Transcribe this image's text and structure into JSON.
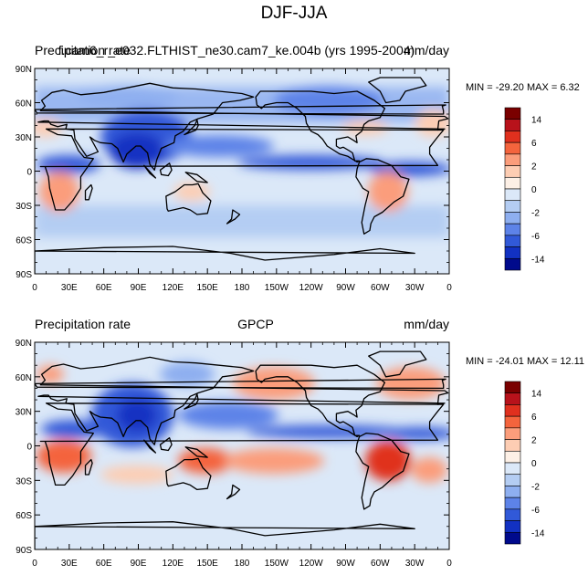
{
  "title": "DJF-JJA",
  "colorbar_levels": [
    "14",
    "6",
    "2",
    "0",
    "-2",
    "-6",
    "-14"
  ],
  "colorbar_colors": [
    "#7a0000",
    "#b8121b",
    "#e0301e",
    "#f4643d",
    "#fb9d7b",
    "#fdcdb3",
    "#fdf0e6",
    "#dbe8f8",
    "#b4cdf3",
    "#8eaff0",
    "#5d83e8",
    "#3159d8",
    "#1231c2",
    "#000a8c"
  ],
  "x_ticks": [
    "0",
    "30E",
    "60E",
    "90E",
    "120E",
    "150E",
    "180",
    "150W",
    "120W",
    "90W",
    "60W",
    "30W",
    "0"
  ],
  "y_ticks": [
    "90N",
    "60N",
    "30N",
    "0",
    "30S",
    "60S",
    "90S"
  ],
  "panels": [
    {
      "left_label": "Precipitation rate",
      "center_label": "f.cam6_r_e032.FLTHIST_ne30.cam7_ke.004b (yrs 1995-2004)",
      "right_label": "mm/day",
      "min_max": "MIN = -29.20 MAX =   6.32"
    },
    {
      "left_label": "Precipitation rate",
      "center_label": "GPCP",
      "right_label": "mm/day",
      "min_max": "MIN = -24.01 MAX =  12.11"
    }
  ]
}
